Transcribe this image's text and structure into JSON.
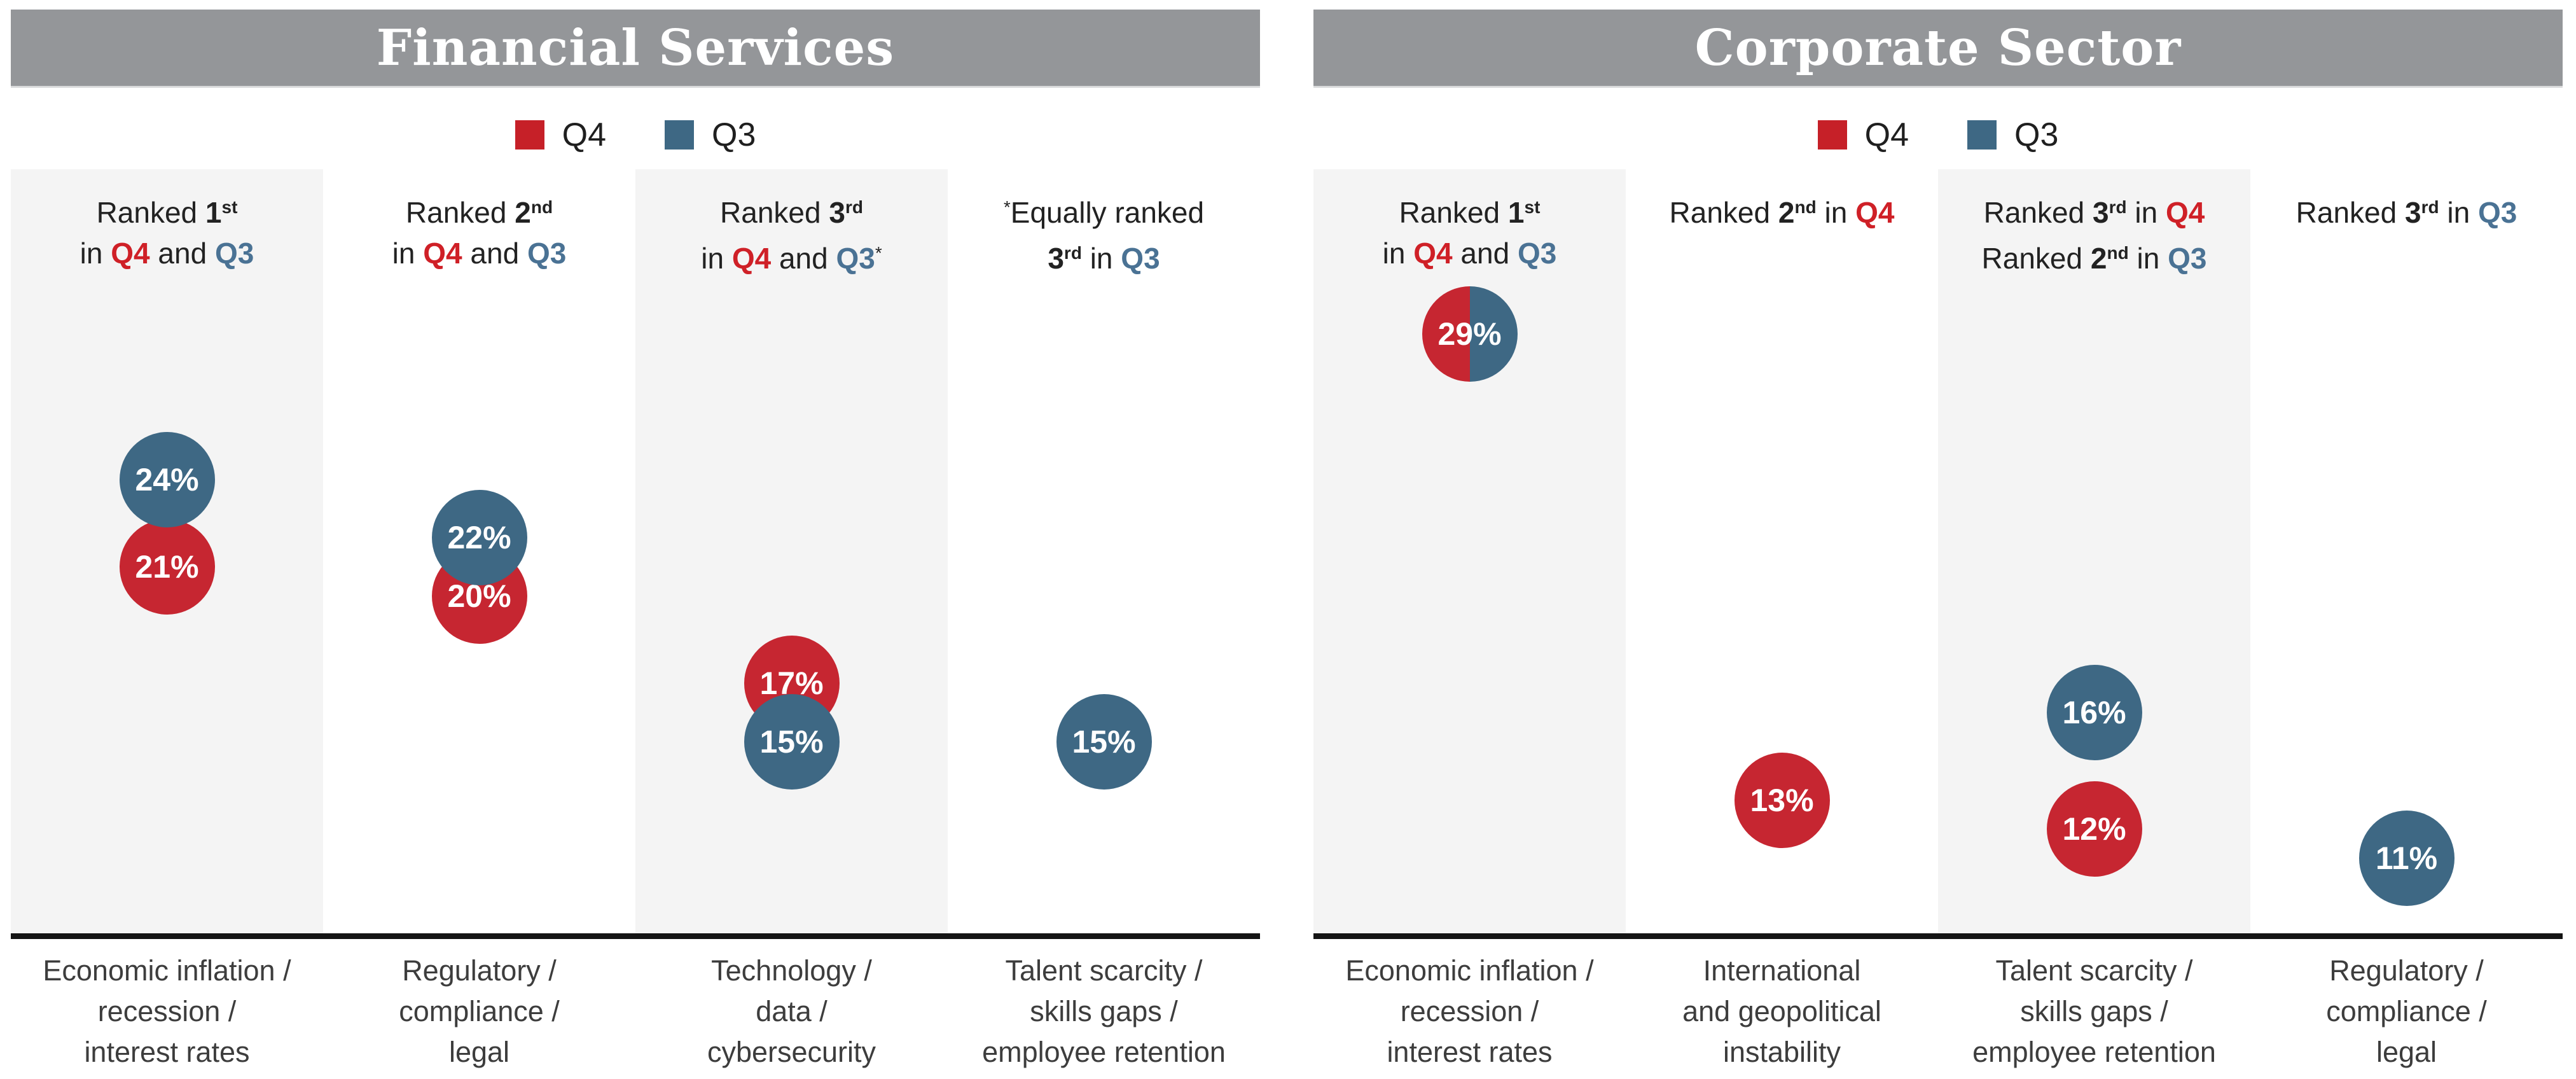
{
  "colors": {
    "q4_red": "#c62631",
    "q3_blue": "#3e6884",
    "header_red": "#cf2027",
    "header_blue": "#4a7294",
    "banner_gray": "#949699",
    "column_shade": "#f4f4f4",
    "axis_black": "#141414",
    "header_text": "#222222",
    "label_text": "#3d3d3d"
  },
  "sections": [
    {
      "id": "financial-services",
      "title": "Financial Services",
      "legend": {
        "q4": "Q4",
        "q3": "Q3"
      },
      "columns": [
        {
          "header": [
            [
              [
                "Ranked ",
                "p"
              ],
              [
                "1",
                "b"
              ],
              [
                "st",
                "supb"
              ]
            ],
            [
              [
                "in ",
                "p"
              ],
              [
                "Q4",
                "q4"
              ],
              [
                " and ",
                "p"
              ],
              [
                "Q3",
                "q3"
              ]
            ]
          ],
          "circles": [
            {
              "series": "Q4",
              "value": 21,
              "text": "21%"
            },
            {
              "series": "Q3",
              "value": 24,
              "text": "24%"
            }
          ],
          "label": [
            "Economic inflation /",
            "recession /",
            "interest rates"
          ]
        },
        {
          "header": [
            [
              [
                "Ranked ",
                "p"
              ],
              [
                "2",
                "b"
              ],
              [
                "nd",
                "supb"
              ]
            ],
            [
              [
                "in ",
                "p"
              ],
              [
                "Q4",
                "q4"
              ],
              [
                " and ",
                "p"
              ],
              [
                "Q3",
                "q3"
              ]
            ]
          ],
          "circles": [
            {
              "series": "Q4",
              "value": 20,
              "text": "20%"
            },
            {
              "series": "Q3",
              "value": 22,
              "text": "22%"
            }
          ],
          "label": [
            "Regulatory /",
            "compliance /",
            "legal"
          ]
        },
        {
          "header": [
            [
              [
                "Ranked ",
                "p"
              ],
              [
                "3",
                "b"
              ],
              [
                "rd",
                "supb"
              ]
            ],
            [
              [
                "in ",
                "p"
              ],
              [
                "Q4",
                "q4"
              ],
              [
                " and ",
                "p"
              ],
              [
                "Q3",
                "q3"
              ],
              [
                "*",
                "sup"
              ]
            ]
          ],
          "circles": [
            {
              "series": "Q4",
              "value": 17,
              "text": "17%"
            },
            {
              "series": "Q3",
              "value": 15,
              "text": "15%"
            }
          ],
          "label": [
            "Technology /",
            "data /",
            "cybersecurity"
          ]
        },
        {
          "header": [
            [
              [
                "*",
                "sup"
              ],
              [
                "Equally ranked",
                "p"
              ]
            ],
            [
              [
                "3",
                "b"
              ],
              [
                "rd",
                "supb"
              ],
              [
                " in ",
                "p"
              ],
              [
                "Q3",
                "q3"
              ]
            ]
          ],
          "circles": [
            {
              "series": "Q3",
              "value": 15,
              "text": "15%"
            }
          ],
          "label": [
            "Talent scarcity /",
            "skills gaps /",
            "employee retention"
          ]
        }
      ]
    },
    {
      "id": "corporate-sector",
      "title": "Corporate Sector",
      "legend": {
        "q4": "Q4",
        "q3": "Q3"
      },
      "columns": [
        {
          "header": [
            [
              [
                "Ranked ",
                "p"
              ],
              [
                "1",
                "b"
              ],
              [
                "st",
                "supb"
              ]
            ],
            [
              [
                "in ",
                "p"
              ],
              [
                "Q4",
                "q4"
              ],
              [
                " and ",
                "p"
              ],
              [
                "Q3",
                "q3"
              ]
            ]
          ],
          "circles": [
            {
              "series": "both",
              "value": 29,
              "text": "29%"
            }
          ],
          "label": [
            "Economic inflation /",
            "recession /",
            "interest rates"
          ]
        },
        {
          "header": [
            [
              [
                "Ranked ",
                "p"
              ],
              [
                "2",
                "b"
              ],
              [
                "nd",
                "supb"
              ],
              [
                " in ",
                "p"
              ],
              [
                "Q4",
                "q4"
              ]
            ]
          ],
          "circles": [
            {
              "series": "Q4",
              "value": 13,
              "text": "13%"
            }
          ],
          "label": [
            "International",
            "and geopolitical",
            "instability"
          ]
        },
        {
          "header": [
            [
              [
                "Ranked ",
                "p"
              ],
              [
                "3",
                "b"
              ],
              [
                "rd",
                "supb"
              ],
              [
                " in ",
                "p"
              ],
              [
                "Q4",
                "q4"
              ]
            ],
            [
              [
                "Ranked ",
                "p"
              ],
              [
                "2",
                "b"
              ],
              [
                "nd",
                "supb"
              ],
              [
                " in ",
                "p"
              ],
              [
                "Q3",
                "q3"
              ]
            ]
          ],
          "circles": [
            {
              "series": "Q4",
              "value": 12,
              "text": "12%"
            },
            {
              "series": "Q3",
              "value": 16,
              "text": "16%"
            }
          ],
          "label": [
            "Talent scarcity /",
            "skills gaps /",
            "employee retention"
          ]
        },
        {
          "header": [
            [
              [
                "Ranked ",
                "p"
              ],
              [
                "3",
                "b"
              ],
              [
                "rd",
                "supb"
              ],
              [
                " in ",
                "p"
              ],
              [
                "Q3",
                "q3"
              ]
            ]
          ],
          "circles": [
            {
              "series": "Q3",
              "value": 11,
              "text": "11%"
            }
          ],
          "label": [
            "Regulatory /",
            "compliance /",
            "legal"
          ]
        }
      ]
    }
  ],
  "chart_data": [
    {
      "type": "scatter",
      "title": "Financial Services",
      "unit": "percent",
      "legend_entries": [
        "Q4",
        "Q3"
      ],
      "legend_position": "top-center",
      "categories": [
        "Economic inflation / recession / interest rates",
        "Regulatory / compliance / legal",
        "Technology / data / cybersecurity",
        "Talent scarcity / skills gaps / employee retention"
      ],
      "series": [
        {
          "name": "Q4",
          "values": [
            21,
            20,
            17,
            null
          ]
        },
        {
          "name": "Q3",
          "values": [
            24,
            22,
            15,
            15
          ]
        }
      ],
      "annotations": [
        "Ranked 1st in Q4 and Q3",
        "Ranked 2nd in Q4 and Q3",
        "Ranked 3rd in Q4 and Q3*",
        "*Equally ranked 3rd in Q3"
      ]
    },
    {
      "type": "scatter",
      "title": "Corporate Sector",
      "unit": "percent",
      "legend_entries": [
        "Q4",
        "Q3"
      ],
      "legend_position": "top-center",
      "categories": [
        "Economic inflation / recession / interest rates",
        "International and geopolitical instability",
        "Talent scarcity / skills gaps / employee retention",
        "Regulatory / compliance / legal"
      ],
      "series": [
        {
          "name": "Q4",
          "values": [
            29,
            13,
            12,
            null
          ]
        },
        {
          "name": "Q3",
          "values": [
            29,
            null,
            16,
            11
          ]
        }
      ],
      "annotations": [
        "Ranked 1st in Q4 and Q3",
        "Ranked 2nd in Q4",
        "Ranked 3rd in Q4 / Ranked 2nd in Q3",
        "Ranked 3rd in Q3"
      ]
    }
  ]
}
